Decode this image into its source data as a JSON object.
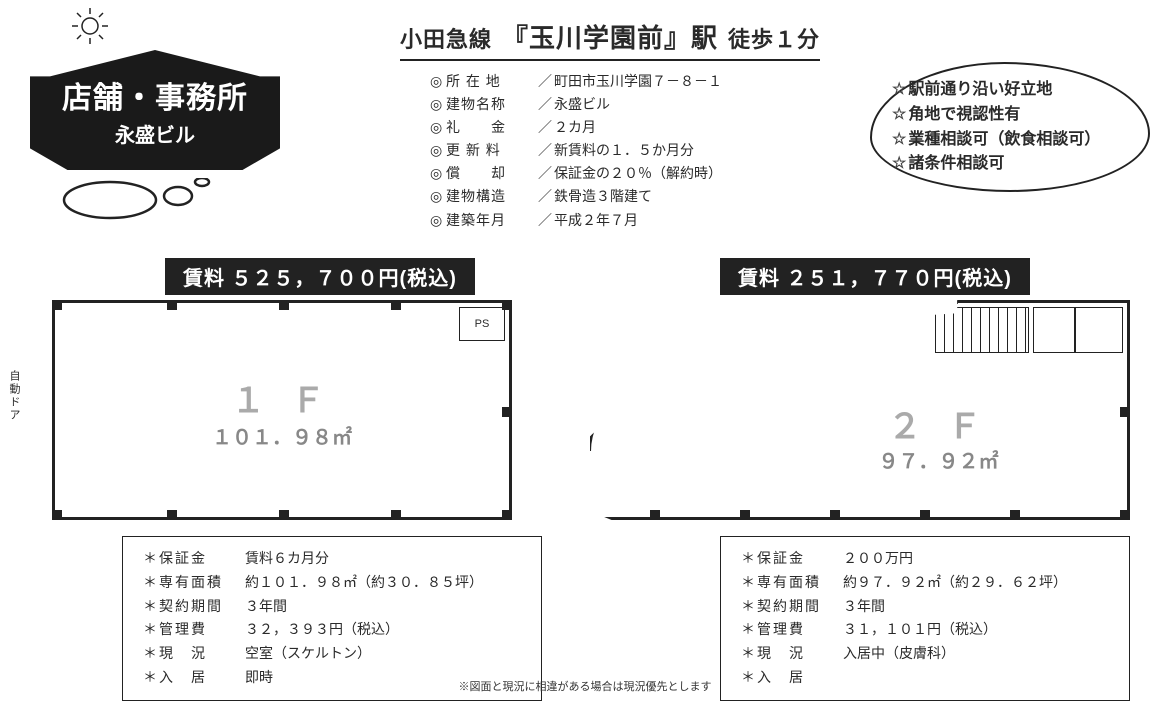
{
  "sign": {
    "main": "店舗・事務所",
    "sub": "永盛ビル"
  },
  "header": {
    "line": "小田急線",
    "station": "『玉川学園前』駅",
    "walk": "徒歩１分"
  },
  "specs": [
    {
      "label": "所 在 地",
      "value": "町田市玉川学園７－８－１"
    },
    {
      "label": "建物名称",
      "value": "永盛ビル"
    },
    {
      "label": "礼　　金",
      "value": "２カ月"
    },
    {
      "label": "更 新 料",
      "value": "新賃料の１．５か月分"
    },
    {
      "label": "償　　却",
      "value": "保証金の２０％（解約時）"
    },
    {
      "label": "建物構造",
      "value": "鉄骨造３階建て"
    },
    {
      "label": "建築年月",
      "value": "平成２年７月"
    }
  ],
  "cloud": [
    "駅前通り沿い好立地",
    "角地で視認性有",
    "業種相談可（飲食相談可）",
    "諸条件相談可"
  ],
  "units": {
    "f1": {
      "price_label": "賃料 ５２５，７００円(税込)",
      "floor_label": "１ Ｆ",
      "area_label": "１０１．９８㎡",
      "ps_label": "PS",
      "door_label": "自動ドア",
      "details": [
        {
          "label": "保証金",
          "value": "賃料６カ月分"
        },
        {
          "label": "専有面積",
          "value": "約１０１．９８㎡（約３０．８５坪）"
        },
        {
          "label": "契約期間",
          "value": "３年間"
        },
        {
          "label": "管理費",
          "value": "３２，３９３円（税込）"
        },
        {
          "label": "現　況",
          "value": "空室（スケルトン）"
        },
        {
          "label": "入　居",
          "value": "即時"
        }
      ]
    },
    "f2": {
      "price_label": "賃料 ２５１，７７０円(税込)",
      "floor_label": "２ Ｆ",
      "area_label": "９７．９２㎡",
      "up_label": "UP",
      "details": [
        {
          "label": "保証金",
          "value": "２００万円"
        },
        {
          "label": "専有面積",
          "value": "約９７．９２㎡（約２９．６２坪）"
        },
        {
          "label": "契約期間",
          "value": "３年間"
        },
        {
          "label": "管理費",
          "value": "３１，１０１円（税込）"
        },
        {
          "label": "現　況",
          "value": "入居中（皮膚科）"
        },
        {
          "label": "入　居",
          "value": ""
        }
      ]
    }
  },
  "footnote": "※図面と現況に相違がある場合は現況優先とします",
  "colors": {
    "ink": "#222222",
    "faded": "#9a9a9a",
    "bg": "#ffffff"
  }
}
